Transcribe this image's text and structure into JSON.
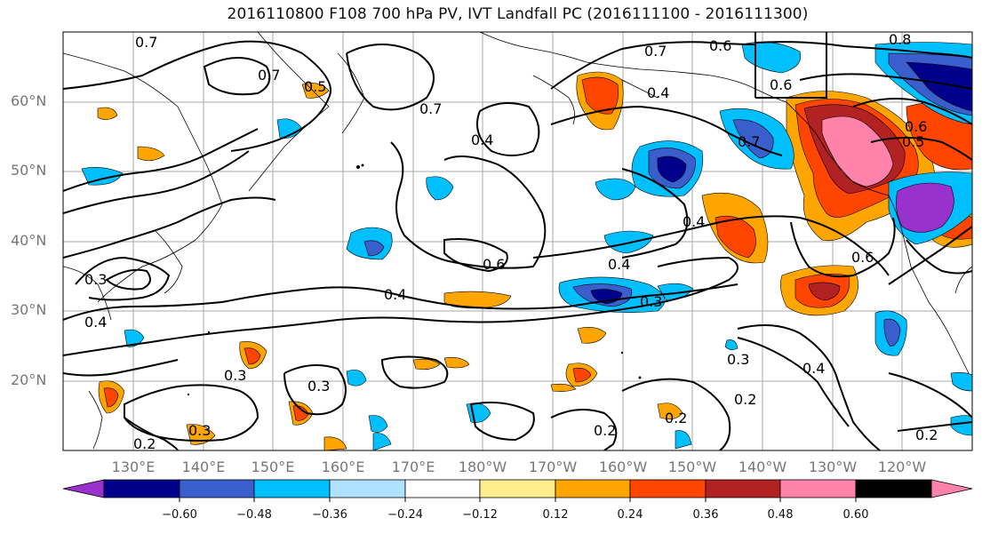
{
  "title": "2016110800 F108 700 hPa PV, IVT Landfall PC (2016111100 - 2016111300)",
  "lat_labels": [
    "60°N",
    "50°N",
    "40°N",
    "30°N",
    "20°N"
  ],
  "lon_labels": [
    "130°E",
    "140°E",
    "150°E",
    "160°E",
    "170°E",
    "180°W",
    "170°W",
    "160°W",
    "150°W",
    "140°W",
    "130°W",
    "120°W"
  ],
  "colorbar": {
    "ticks": [
      "−0.60",
      "−0.48",
      "−0.36",
      "−0.24",
      "−0.12",
      "0.12",
      "0.24",
      "0.36",
      "0.48",
      "0.60"
    ],
    "colors": [
      "#9932cc",
      "#00008b",
      "#3a5fcd",
      "#00bfff",
      "#b0e2ff",
      "#ffffff",
      "#ffec8b",
      "#ffa500",
      "#ff4500",
      "#b22222",
      "#ff82ab"
    ]
  },
  "contour_labels": [
    "0.7",
    "0.6",
    "0.7",
    "0.5",
    "0.7",
    "0.7",
    "0.4",
    "0.7",
    "0.6",
    "0.8",
    "0.6",
    "0.4",
    "0.6",
    "0.4",
    "0.4",
    "0.3",
    "0.3",
    "0.3",
    "0.2",
    "0.3",
    "0.4",
    "0.3",
    "0.2",
    "0.4",
    "0.2",
    "0.2",
    "0.2",
    "0.5",
    "0.4",
    "0.6",
    "0.3"
  ]
}
